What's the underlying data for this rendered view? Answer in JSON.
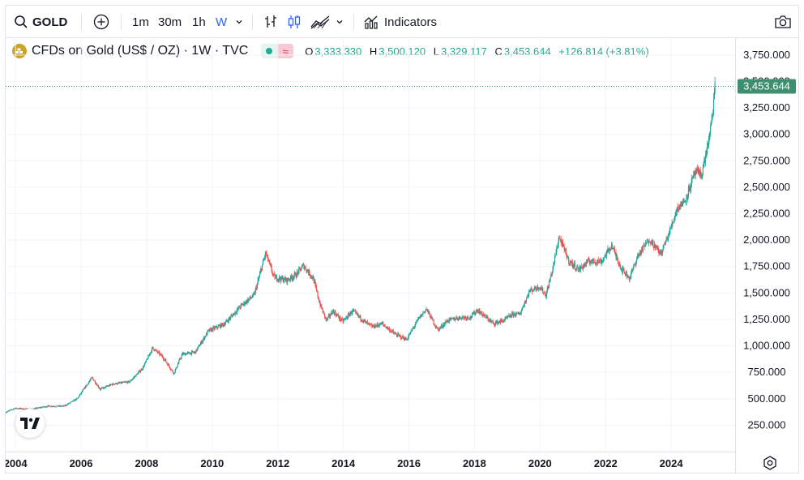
{
  "toolbar": {
    "symbol": "GOLD",
    "intervals": [
      "1m",
      "30m",
      "1h",
      "W"
    ],
    "indicators_label": "Indicators"
  },
  "legend": {
    "title": "CFDs on Gold (US$ / OZ) · 1W · TVC",
    "o_label": "O",
    "o_value": "3,333.330",
    "h_label": "H",
    "h_value": "3,500.120",
    "l_label": "L",
    "l_value": "3,329.117",
    "c_label": "C",
    "c_value": "3,453.644",
    "change": "+126.814 (+3.81%)"
  },
  "colors": {
    "up": "#26a69a",
    "down": "#ef5350",
    "last_price_bg": "#3d8f6f",
    "text_green": "#22ab94"
  },
  "chart_data": {
    "type": "candlestick",
    "title": "",
    "xlabel": "",
    "ylabel": "",
    "x_ticks": [
      "2004",
      "2006",
      "2008",
      "2010",
      "2012",
      "2014",
      "2016",
      "2018",
      "2020",
      "2022",
      "2024"
    ],
    "x_range": [
      2003.7,
      2025.95
    ],
    "y_ticks": [
      "250.000",
      "500.000",
      "750.000",
      "1,000.000",
      "1,250.000",
      "1,500.000",
      "1,750.000",
      "2,000.000",
      "2,250.000",
      "2,500.000",
      "2,750.000",
      "3,000.000",
      "3,250.000",
      "3,500.000",
      "3,750.000"
    ],
    "y_range": [
      0,
      3910
    ],
    "last_price": 3453.644,
    "last_price_label": "3,453.644",
    "series_points": [
      [
        2003.7,
        370
      ],
      [
        2004.0,
        410
      ],
      [
        2004.5,
        400
      ],
      [
        2005.0,
        430
      ],
      [
        2005.5,
        430
      ],
      [
        2005.9,
        500
      ],
      [
        2006.35,
        700
      ],
      [
        2006.6,
        590
      ],
      [
        2007.0,
        640
      ],
      [
        2007.5,
        660
      ],
      [
        2007.9,
        790
      ],
      [
        2008.2,
        980
      ],
      [
        2008.5,
        900
      ],
      [
        2008.85,
        740
      ],
      [
        2009.1,
        920
      ],
      [
        2009.5,
        940
      ],
      [
        2009.9,
        1140
      ],
      [
        2010.4,
        1210
      ],
      [
        2010.9,
        1380
      ],
      [
        2011.3,
        1480
      ],
      [
        2011.65,
        1880
      ],
      [
        2011.9,
        1650
      ],
      [
        2012.3,
        1620
      ],
      [
        2012.6,
        1680
      ],
      [
        2012.8,
        1760
      ],
      [
        2013.1,
        1640
      ],
      [
        2013.3,
        1400
      ],
      [
        2013.5,
        1240
      ],
      [
        2013.7,
        1330
      ],
      [
        2014.0,
        1230
      ],
      [
        2014.3,
        1330
      ],
      [
        2014.7,
        1220
      ],
      [
        2014.9,
        1180
      ],
      [
        2015.2,
        1210
      ],
      [
        2015.6,
        1110
      ],
      [
        2015.95,
        1060
      ],
      [
        2016.3,
        1250
      ],
      [
        2016.55,
        1350
      ],
      [
        2016.9,
        1150
      ],
      [
        2017.2,
        1240
      ],
      [
        2017.6,
        1270
      ],
      [
        2017.9,
        1270
      ],
      [
        2018.1,
        1340
      ],
      [
        2018.6,
        1210
      ],
      [
        2018.9,
        1240
      ],
      [
        2019.2,
        1300
      ],
      [
        2019.4,
        1300
      ],
      [
        2019.7,
        1520
      ],
      [
        2020.0,
        1560
      ],
      [
        2020.2,
        1480
      ],
      [
        2020.4,
        1720
      ],
      [
        2020.6,
        2030
      ],
      [
        2020.9,
        1800
      ],
      [
        2021.2,
        1720
      ],
      [
        2021.5,
        1800
      ],
      [
        2021.9,
        1800
      ],
      [
        2022.2,
        1950
      ],
      [
        2022.5,
        1730
      ],
      [
        2022.75,
        1640
      ],
      [
        2023.0,
        1850
      ],
      [
        2023.35,
        2010
      ],
      [
        2023.7,
        1870
      ],
      [
        2023.95,
        2060
      ],
      [
        2024.2,
        2300
      ],
      [
        2024.45,
        2380
      ],
      [
        2024.75,
        2640
      ],
      [
        2024.95,
        2620
      ],
      [
        2025.2,
        3000
      ],
      [
        2025.3,
        3250
      ],
      [
        2025.35,
        3453
      ]
    ]
  }
}
